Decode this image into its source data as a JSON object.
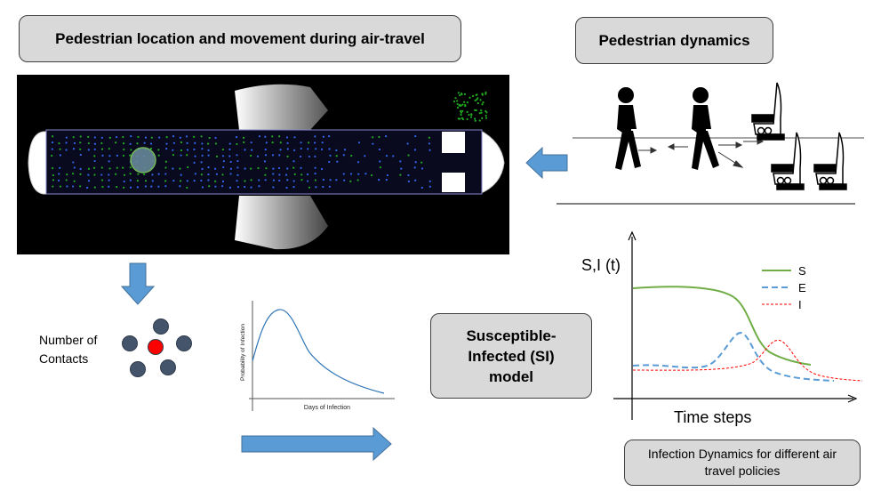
{
  "labels": {
    "pedestrian_location": "Pedestrian location and movement during air-travel",
    "pedestrian_dynamics": "Pedestrian dynamics",
    "si_model": "Susceptible-Infected (SI) model",
    "number_of_contacts": "Number of Contacts",
    "infection_dynamics": "Infection Dynamics for different air travel policies"
  },
  "infection_curve": {
    "ylabel": "Probability of Infection",
    "xlabel": "Days of Infection"
  },
  "sei_chart": {
    "ylabel": "S,I (t)",
    "xlabel": "Time steps",
    "legend": [
      "S",
      "E",
      "I"
    ],
    "colors": {
      "S": "#70ad47",
      "E": "#5b9bd5",
      "I": "#ff0000"
    }
  },
  "colors": {
    "arrow": "#5b9bd5",
    "box_fill": "#d9d9d9",
    "contact_center": "#ff0000",
    "contact_node": "#44546a",
    "dot_green": "#22aa22",
    "dot_blue": "#3366ee"
  }
}
